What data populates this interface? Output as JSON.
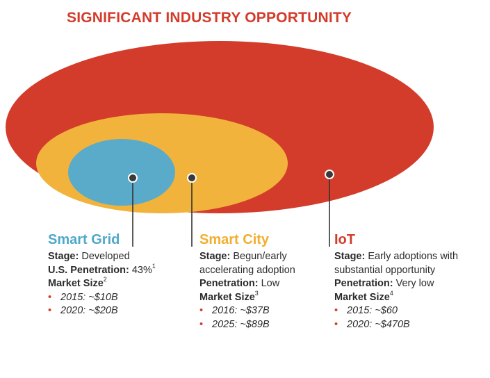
{
  "title": "SIGNIFICANT INDUSTRY OPPORTUNITY",
  "colors": {
    "iot": "#d33c2b",
    "smart_city": "#f2b33c",
    "smart_grid": "#5aabca",
    "title": "#d33c2b",
    "text": "#2b2b2b"
  },
  "segments": [
    {
      "name": "Smart Grid",
      "stage_label": "Stage:",
      "stage_value": " Developed",
      "pen_label": "U.S. Penetration:",
      "pen_value": " 43%",
      "pen_note": "1",
      "market_label": "Market Size",
      "market_note": "2",
      "bullets": [
        "2015: ~$10B",
        "2020: ~$20B"
      ]
    },
    {
      "name": "Smart City",
      "stage_label": "Stage:",
      "stage_value": " Begun/early accelerating adoption",
      "pen_label": "Penetration:",
      "pen_value": " Low",
      "market_label": "Market Size",
      "market_note": "3",
      "bullets": [
        "2016: ~$37B",
        "2025: ~$89B"
      ]
    },
    {
      "name": "IoT",
      "stage_label": "Stage:",
      "stage_value": " Early adoptions with substantial opportunity",
      "pen_label": "Penetration:",
      "pen_value": " Very low",
      "market_label": "Market Size",
      "market_note": "4",
      "bullets": [
        "2015: ~$60",
        "2020: ~$470B"
      ]
    }
  ]
}
